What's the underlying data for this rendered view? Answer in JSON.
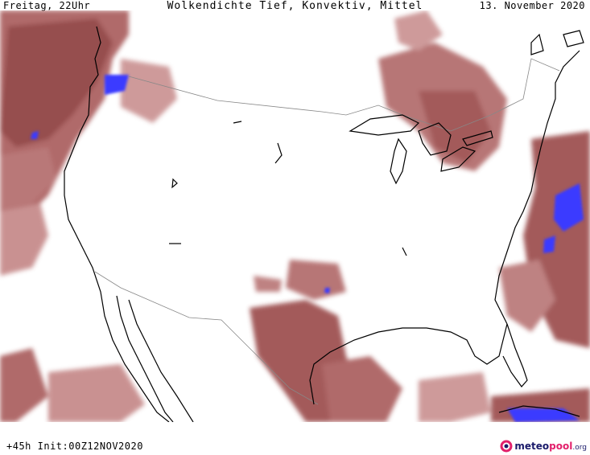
{
  "header": {
    "left": "Freitag, 22Uhr",
    "title": "Wolkendichte  Tief, Konvektiv, Mittel",
    "date": "13. November 2020"
  },
  "footer": {
    "run_info": "+45h Init:00Z12NOV2020",
    "logo_part1": "meteo",
    "logo_part2": "pool",
    "logo_part3": ".org"
  },
  "colors": {
    "cloud_dense": "#8b3a3a",
    "cloud_mid": "#a85a5a",
    "cloud_light": "#c99090",
    "convective": "#3b3bff",
    "coastline": "#000000",
    "border": "#888888",
    "background": "#ffffff"
  },
  "map": {
    "region": "North America / contiguous USA",
    "layers": [
      "cloud-density",
      "coastlines",
      "national-borders"
    ]
  }
}
